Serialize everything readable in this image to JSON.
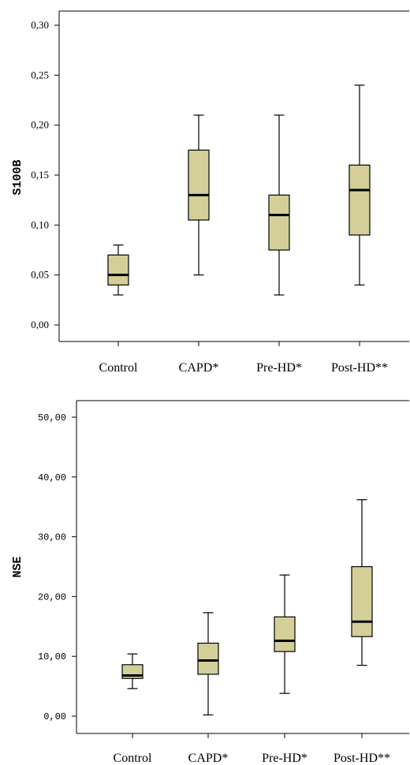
{
  "chart_data": [
    {
      "type": "box",
      "title": "",
      "xlabel": "",
      "ylabel": "S100B",
      "ylim": [
        0,
        0.31
      ],
      "yticks": [
        "0,00",
        "0,05",
        "0,10",
        "0,15",
        "0,20",
        "0,25",
        "0,30"
      ],
      "yticks_values": [
        0,
        0.05,
        0.1,
        0.15,
        0.2,
        0.25,
        0.3
      ],
      "categories": [
        "Control",
        "CAPD*",
        "Pre-HD*",
        "Post-HD**"
      ],
      "box_color": "#d4cf99",
      "boxes": [
        {
          "min": 0.03,
          "q1": 0.04,
          "median": 0.05,
          "q3": 0.07,
          "max": 0.08
        },
        {
          "min": 0.05,
          "q1": 0.105,
          "median": 0.13,
          "q3": 0.175,
          "max": 0.21
        },
        {
          "min": 0.03,
          "q1": 0.075,
          "median": 0.11,
          "q3": 0.13,
          "max": 0.21
        },
        {
          "min": 0.04,
          "q1": 0.09,
          "median": 0.135,
          "q3": 0.16,
          "max": 0.24
        }
      ]
    },
    {
      "type": "box",
      "title": "",
      "xlabel": "",
      "ylabel": "NSE",
      "ylim": [
        0,
        52
      ],
      "yticks": [
        "0,00",
        "10,00",
        "20,00",
        "30,00",
        "40,00",
        "50,00"
      ],
      "yticks_values": [
        0,
        10,
        20,
        30,
        40,
        50
      ],
      "categories": [
        "Control",
        "CAPD*",
        "Pre-HD*",
        "Post-HD**"
      ],
      "box_color": "#d4cf99",
      "boxes": [
        {
          "min": 4.6,
          "q1": 6.3,
          "median": 6.8,
          "q3": 8.6,
          "max": 10.4
        },
        {
          "min": 0.2,
          "q1": 7.0,
          "median": 9.3,
          "q3": 12.2,
          "max": 17.3
        },
        {
          "min": 3.8,
          "q1": 10.8,
          "median": 12.6,
          "q3": 16.6,
          "max": 23.6
        },
        {
          "min": 8.5,
          "q1": 13.3,
          "median": 15.8,
          "q3": 25.0,
          "max": 36.2
        }
      ]
    }
  ]
}
